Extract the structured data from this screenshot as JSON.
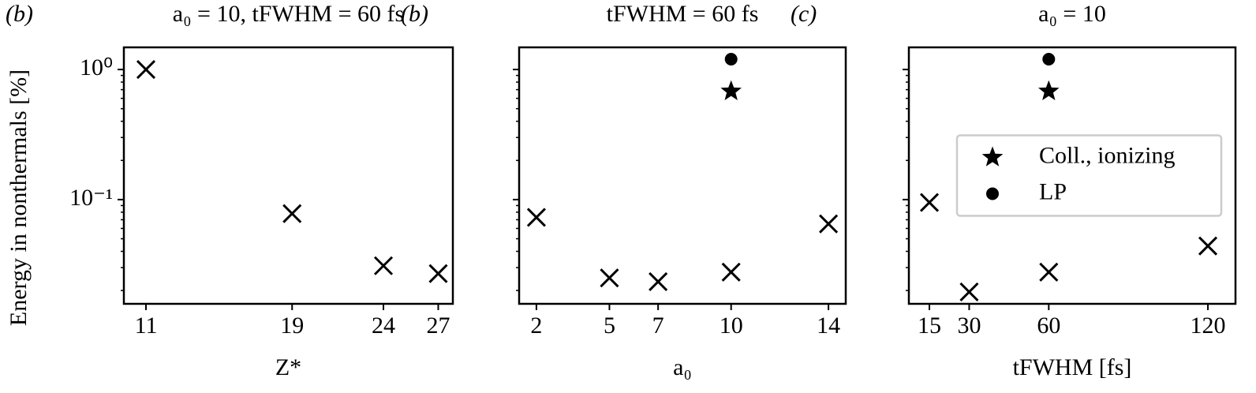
{
  "chart_data": [
    {
      "type": "scatter",
      "panel_label": "(b)",
      "title": "a₀ = 10, tFWHM = 60 fs",
      "x_label": "Z*",
      "y_label": "Energy in nonthermals [%]",
      "log_y": true,
      "show_ytick_labels": true,
      "xlim": [
        9.79,
        27.8
      ],
      "xticks": [
        11,
        19,
        24,
        27
      ],
      "ylim": [
        0.0158,
        1.48
      ],
      "yticks": [
        {
          "value": 1,
          "label": "10⁰"
        },
        {
          "value": 0.1,
          "label": "10⁻¹"
        }
      ],
      "yminorticks": [
        0.02,
        0.03,
        0.04,
        0.05,
        0.06,
        0.07,
        0.08,
        0.09,
        0.2,
        0.3,
        0.4,
        0.5,
        0.6,
        0.7,
        0.8,
        0.9
      ],
      "series": [
        {
          "marker": "x",
          "color": "#000000",
          "x": [
            11,
            19,
            24,
            27
          ],
          "values": [
            1.0,
            0.078,
            0.031,
            0.027
          ]
        }
      ]
    },
    {
      "type": "scatter",
      "panel_label": "(b)",
      "title": "tFWHM = 60 fs",
      "x_label": "a₀",
      "log_y": true,
      "show_ytick_labels": false,
      "xlim": [
        1.29,
        14.71
      ],
      "xticks": [
        2,
        5,
        7,
        10,
        14
      ],
      "ylim": [
        0.0158,
        1.48
      ],
      "yticks": [
        1,
        0.1
      ],
      "yminorticks": [
        0.02,
        0.03,
        0.04,
        0.05,
        0.06,
        0.07,
        0.08,
        0.09,
        0.2,
        0.3,
        0.4,
        0.5,
        0.6,
        0.7,
        0.8,
        0.9
      ],
      "series": [
        {
          "marker": "x",
          "color": "#000000",
          "x": [
            2,
            5,
            7,
            10,
            14
          ],
          "values": [
            0.073,
            0.025,
            0.0234,
            0.0277,
            0.065
          ]
        },
        {
          "name": "Coll., ionizing",
          "marker": "star",
          "color": "#000000",
          "x": [
            10
          ],
          "values": [
            0.68
          ]
        },
        {
          "name": "LP",
          "marker": "circle",
          "color": "#000000",
          "x": [
            10
          ],
          "values": [
            1.2
          ]
        }
      ]
    },
    {
      "type": "scatter",
      "panel_label": "(c)",
      "title": "a₀ = 10",
      "x_label": "tFWHM  [fs]",
      "log_y": true,
      "show_ytick_labels": false,
      "legend": "center right",
      "xlim": [
        7.26,
        130.4
      ],
      "xticks": [
        15,
        30,
        60,
        120
      ],
      "ylim": [
        0.0158,
        1.48
      ],
      "yticks": [
        1,
        0.1
      ],
      "yminorticks": [
        0.02,
        0.03,
        0.04,
        0.05,
        0.06,
        0.07,
        0.08,
        0.09,
        0.2,
        0.3,
        0.4,
        0.5,
        0.6,
        0.7,
        0.8,
        0.9
      ],
      "series": [
        {
          "marker": "x",
          "color": "#000000",
          "x": [
            15,
            30,
            60,
            120
          ],
          "values": [
            0.095,
            0.0195,
            0.0277,
            0.044
          ]
        },
        {
          "name": "Coll., ionizing",
          "marker": "star",
          "color": "#000000",
          "x": [
            60
          ],
          "values": [
            0.68
          ]
        },
        {
          "name": "LP",
          "marker": "circle",
          "color": "#000000",
          "x": [
            60
          ],
          "values": [
            1.2
          ]
        }
      ]
    }
  ]
}
